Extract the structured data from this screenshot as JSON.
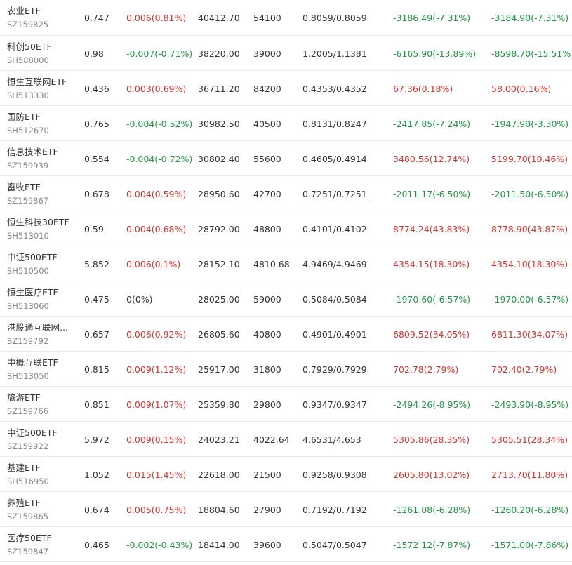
{
  "colors": {
    "up": "#e0302a",
    "down": "#1a9a3e",
    "flat": "#333333"
  },
  "rows": [
    {
      "name": "农业ETF",
      "code": "SZ159825",
      "price": "0.747",
      "change": "0.006(0.81%)",
      "change_dir": "up",
      "amount": "40412.70",
      "volume": "54100",
      "bid_ask": "0.8059/0.8059",
      "flow1": "-3186.49(-7.31%)",
      "flow1_dir": "down",
      "flow2": "-3184.90(-7.31%)",
      "flow2_dir": "down"
    },
    {
      "name": "科创50ETF",
      "code": "SH588000",
      "price": "0.98",
      "change": "-0.007(-0.71%)",
      "change_dir": "down",
      "amount": "38220.00",
      "volume": "39000",
      "bid_ask": "1.2005/1.1381",
      "flow1": "-6165.90(-13.89%)",
      "flow1_dir": "down",
      "flow2": "-8598.70(-15.51%)",
      "flow2_dir": "down"
    },
    {
      "name": "恒生互联网ETF",
      "code": "SH513330",
      "price": "0.436",
      "change": "0.003(0.69%)",
      "change_dir": "up",
      "amount": "36711.20",
      "volume": "84200",
      "bid_ask": "0.4353/0.4352",
      "flow1": "67.36(0.18%)",
      "flow1_dir": "up",
      "flow2": "58.00(0.16%)",
      "flow2_dir": "up"
    },
    {
      "name": "国防ETF",
      "code": "SH512670",
      "price": "0.765",
      "change": "-0.004(-0.52%)",
      "change_dir": "down",
      "amount": "30982.50",
      "volume": "40500",
      "bid_ask": "0.8131/0.8247",
      "flow1": "-2417.85(-7.24%)",
      "flow1_dir": "down",
      "flow2": "-1947.90(-3.30%)",
      "flow2_dir": "down"
    },
    {
      "name": "信息技术ETF",
      "code": "SZ159939",
      "price": "0.554",
      "change": "-0.004(-0.72%)",
      "change_dir": "down",
      "amount": "30802.40",
      "volume": "55600",
      "bid_ask": "0.4605/0.4914",
      "flow1": "3480.56(12.74%)",
      "flow1_dir": "up",
      "flow2": "5199.70(10.46%)",
      "flow2_dir": "up"
    },
    {
      "name": "畜牧ETF",
      "code": "SZ159867",
      "price": "0.678",
      "change": "0.004(0.59%)",
      "change_dir": "up",
      "amount": "28950.60",
      "volume": "42700",
      "bid_ask": "0.7251/0.7251",
      "flow1": "-2011.17(-6.50%)",
      "flow1_dir": "down",
      "flow2": "-2011.50(-6.50%)",
      "flow2_dir": "down"
    },
    {
      "name": "恒生科技30ETF",
      "code": "SH513010",
      "price": "0.59",
      "change": "0.004(0.68%)",
      "change_dir": "up",
      "amount": "28792.00",
      "volume": "48800",
      "bid_ask": "0.4101/0.4102",
      "flow1": "8774.24(43.83%)",
      "flow1_dir": "up",
      "flow2": "8778.90(43.87%)",
      "flow2_dir": "up"
    },
    {
      "name": "中证500ETF",
      "code": "SH510500",
      "price": "5.852",
      "change": "0.006(0.1%)",
      "change_dir": "up",
      "amount": "28152.10",
      "volume": "4810.68",
      "bid_ask": "4.9469/4.9469",
      "flow1": "4354.15(18.30%)",
      "flow1_dir": "up",
      "flow2": "4354.10(18.30%)",
      "flow2_dir": "up"
    },
    {
      "name": "恒生医疗ETF",
      "code": "SH513060",
      "price": "0.475",
      "change": "0(0%)",
      "change_dir": "flat",
      "amount": "28025.00",
      "volume": "59000",
      "bid_ask": "0.5084/0.5084",
      "flow1": "-1970.60(-6.57%)",
      "flow1_dir": "down",
      "flow2": "-1970.00(-6.57%)",
      "flow2_dir": "down"
    },
    {
      "name": "港股通互联网...",
      "code": "SZ159792",
      "price": "0.657",
      "change": "0.006(0.92%)",
      "change_dir": "up",
      "amount": "26805.60",
      "volume": "40800",
      "bid_ask": "0.4901/0.4901",
      "flow1": "6809.52(34.05%)",
      "flow1_dir": "up",
      "flow2": "6811.30(34.07%)",
      "flow2_dir": "up"
    },
    {
      "name": "中概互联ETF",
      "code": "SH513050",
      "price": "0.815",
      "change": "0.009(1.12%)",
      "change_dir": "up",
      "amount": "25917.00",
      "volume": "31800",
      "bid_ask": "0.7929/0.7929",
      "flow1": "702.78(2.79%)",
      "flow1_dir": "up",
      "flow2": "702.40(2.79%)",
      "flow2_dir": "up"
    },
    {
      "name": "旅游ETF",
      "code": "SZ159766",
      "price": "0.851",
      "change": "0.009(1.07%)",
      "change_dir": "up",
      "amount": "25359.80",
      "volume": "29800",
      "bid_ask": "0.9347/0.9347",
      "flow1": "-2494.26(-8.95%)",
      "flow1_dir": "down",
      "flow2": "-2493.90(-8.95%)",
      "flow2_dir": "down"
    },
    {
      "name": "中证500ETF",
      "code": "SZ159922",
      "price": "5.972",
      "change": "0.009(0.15%)",
      "change_dir": "up",
      "amount": "24023.21",
      "volume": "4022.64",
      "bid_ask": "4.6531/4.653",
      "flow1": "5305.86(28.35%)",
      "flow1_dir": "up",
      "flow2": "5305.51(28.34%)",
      "flow2_dir": "up"
    },
    {
      "name": "基建ETF",
      "code": "SH516950",
      "price": "1.052",
      "change": "0.015(1.45%)",
      "change_dir": "up",
      "amount": "22618.00",
      "volume": "21500",
      "bid_ask": "0.9258/0.9308",
      "flow1": "2605.80(13.02%)",
      "flow1_dir": "up",
      "flow2": "2713.70(11.80%)",
      "flow2_dir": "up"
    },
    {
      "name": "养殖ETF",
      "code": "SZ159865",
      "price": "0.674",
      "change": "0.005(0.75%)",
      "change_dir": "up",
      "amount": "18804.60",
      "volume": "27900",
      "bid_ask": "0.7192/0.7192",
      "flow1": "-1261.08(-6.28%)",
      "flow1_dir": "down",
      "flow2": "-1260.20(-6.28%)",
      "flow2_dir": "down"
    },
    {
      "name": "医疗50ETF",
      "code": "SZ159847",
      "price": "0.465",
      "change": "-0.002(-0.43%)",
      "change_dir": "down",
      "amount": "18414.00",
      "volume": "39600",
      "bid_ask": "0.5047/0.5047",
      "flow1": "-1572.12(-7.87%)",
      "flow1_dir": "down",
      "flow2": "-1571.00(-7.86%)",
      "flow2_dir": "down"
    }
  ]
}
